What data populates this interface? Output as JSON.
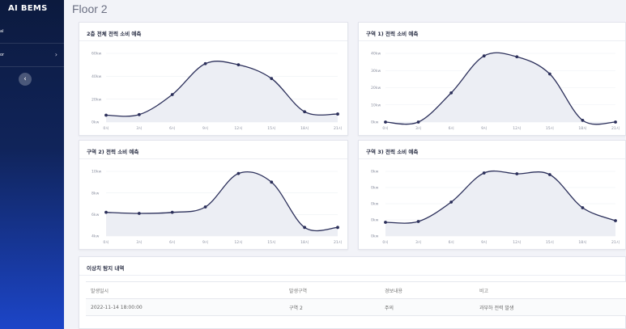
{
  "sidebar": {
    "brand": "AI BEMS",
    "items": [
      {
        "label": "al",
        "chevron": ""
      },
      {
        "label": "or",
        "chevron": "›"
      }
    ],
    "collapse_icon": "‹"
  },
  "page_title": "Floor 2",
  "anomaly": {
    "title": "이상치 탐지 내역",
    "columns": [
      "발생일시",
      "발생구역",
      "경보내용",
      "비고"
    ],
    "rows": [
      [
        "2022-11-14 18:00:00",
        "구역 2",
        "주의",
        "과부하 전력 발생"
      ]
    ]
  },
  "chart_data": [
    {
      "type": "line",
      "title": "2층 전체 전력 소비 예측",
      "x": [
        "0시",
        "3시",
        "6시",
        "9시",
        "12시",
        "15시",
        "18시",
        "21시"
      ],
      "y_ticks": [
        "0kw",
        "20kw",
        "40kw",
        "60kw"
      ],
      "ylim": [
        0,
        60
      ],
      "values": [
        6,
        6.5,
        24,
        51,
        50,
        38,
        9,
        7
      ],
      "color": "#2b2f5a",
      "fill": "#eceef4"
    },
    {
      "type": "line",
      "title": "구역 1) 전력 소비 예측",
      "x": [
        "0시",
        "3시",
        "6시",
        "9시",
        "12시",
        "15시",
        "18시",
        "21시"
      ],
      "y_ticks": [
        "0kw",
        "10kw",
        "20kw",
        "30kw",
        "40kw"
      ],
      "ylim": [
        0,
        40
      ],
      "values": [
        0,
        0,
        17,
        38.5,
        38,
        28,
        1,
        0
      ],
      "color": "#2b2f5a",
      "fill": "#eceef4"
    },
    {
      "type": "line",
      "title": "구역 2) 전력 소비 예측",
      "x": [
        "0시",
        "3시",
        "6시",
        "9시",
        "12시",
        "15시",
        "18시",
        "21시"
      ],
      "y_ticks": [
        "4kw",
        "6kw",
        "8kw",
        "10kw"
      ],
      "ylim": [
        4,
        10
      ],
      "values": [
        6.2,
        6.1,
        6.2,
        6.7,
        9.8,
        9,
        4.8,
        4.8
      ],
      "color": "#2b2f5a",
      "fill": "#eceef4"
    },
    {
      "type": "line",
      "title": "구역 3) 전력 소비 예측",
      "x": [
        "0시",
        "3시",
        "6시",
        "9시",
        "12시",
        "15시",
        "18시",
        "21시"
      ],
      "y_ticks": [
        "0kw",
        "0kw",
        "0kw",
        "0kw",
        "0kw"
      ],
      "ylim": [
        0,
        4
      ],
      "values": [
        0.85,
        0.9,
        2.1,
        3.9,
        3.85,
        3.8,
        1.75,
        0.95
      ],
      "color": "#2b2f5a",
      "fill": "#eceef4"
    }
  ]
}
